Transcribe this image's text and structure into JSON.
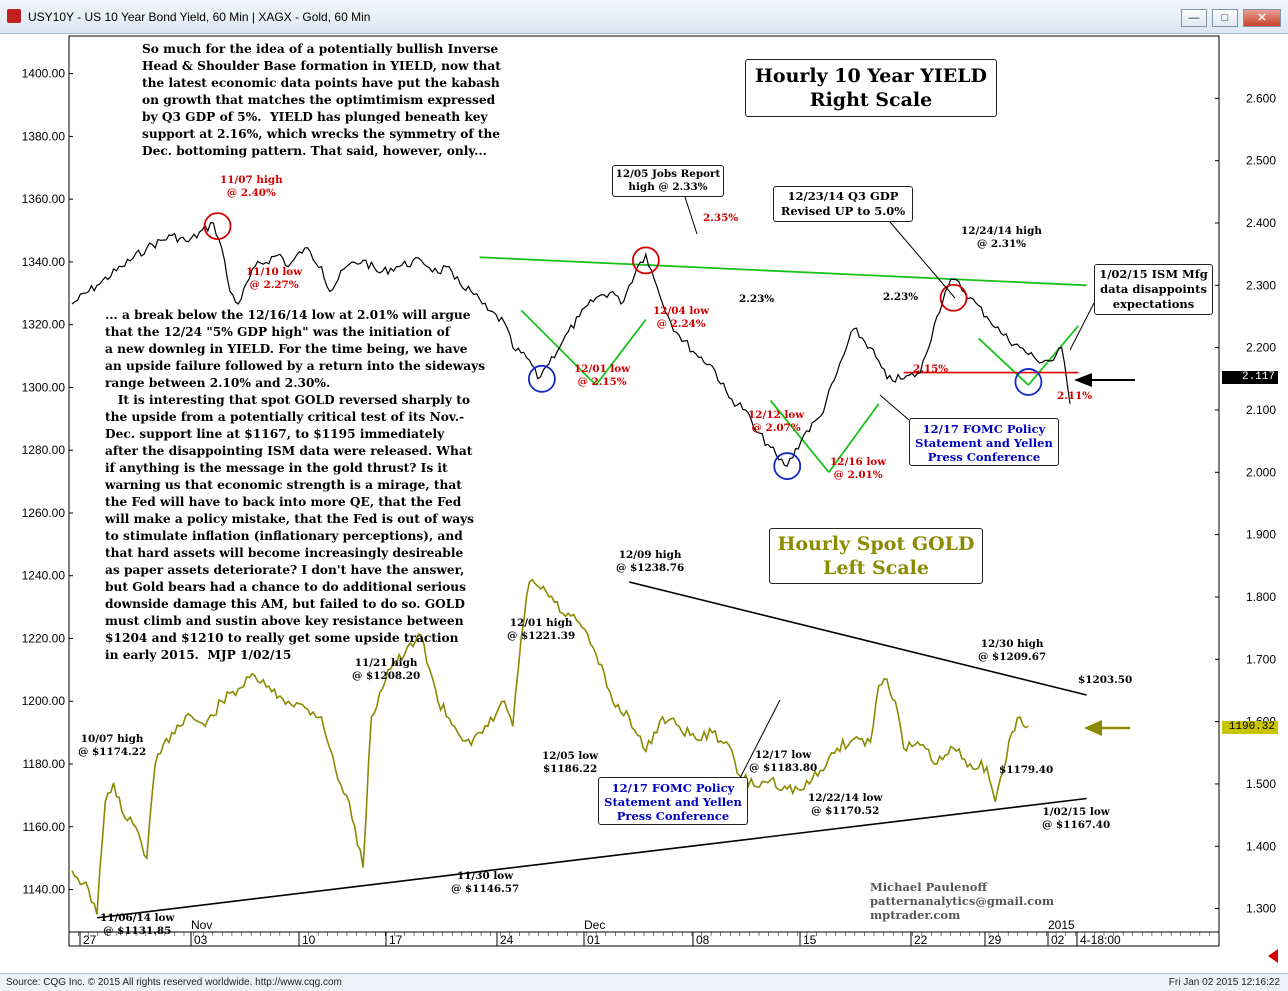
{
  "window": {
    "title": "USY10Y - US 10 Year Bond Yield, 60 Min   |   XAGX - Gold, 60 Min",
    "min_label": "—",
    "max_label": "□",
    "close_label": "✕"
  },
  "status": {
    "left": "Source: CQG Inc. © 2015 All rights reserved worldwide. http://www.cqg.com",
    "right": "Fri Jan 02 2015 12:16:22"
  },
  "notes": {
    "top": "So much for the idea of a potentially bullish Inverse\nHead & Shoulder Base formation in YIELD, now that\nthe latest economic data points have put the kabash\non growth that matches the optimtimism expressed\nby Q3 GDP of 5%.  YIELD has plunged beneath key\nsupport at 2.16%, which wrecks the symmetry of the\nDec. bottoming pattern. That said, however, only...",
    "middle": "... a break below the 12/16/14 low at 2.01% will argue\nthat the 12/24 \"5% GDP high\" was the initiation of\na new downleg in YIELD. For the time being, we have\nan upside failure followed by a return into the sideways\nrange between 2.10% and 2.30%.\n   It is interesting that spot GOLD reversed sharply to\nthe upside from a potentially critical test of its Nov.-\nDec. support line at $1167, to $1195 immediately\nafter the disappointing ISM data were released. What\nif anything is the message in the gold thrust? Is it\nwarning us that economic strength is a mirage, that\nthe Fed will have to back into more QE, that the Fed\nwill make a policy mistake, that the Fed is out of ways\nto stimulate inflation (inflationary perceptions), and\nthat hard assets will become increasingly desireable\nas paper assets deteriorate? I don't have the answer,\nbut Gold bears had a chance to do additional serious\ndownside damage this AM, but failed to do so. GOLD\nmust climb and sustin above key resistance between\n$1204 and $1210 to really get some upside traction\nin early 2015.  MJP 1/02/15"
  },
  "labels": {
    "yield_title": "Hourly 10 Year YIELD\nRight Scale",
    "gold_title": "Hourly Spot GOLD\nLeft Scale",
    "jobs_report": "12/05 Jobs Report\nhigh @ 2.33%",
    "q3_gdp": "12/23/14 Q3 GDP\nRevised UP to 5.0%",
    "ism": "1/02/15 ISM Mfg\ndata disappoints\nexpectations",
    "fomc_yield": "12/17 FOMC Policy\nStatement and Yellen\nPress Conference",
    "fomc_gold": "12/17 FOMC Policy\nStatement and Yellen\nPress Conference",
    "signature": "Michael Paulenoff\npatternanalytics@gmail.com\nmptrader.com"
  },
  "yield_annotations": [
    {
      "text": "11/07 high\n@ 2.40%",
      "color": "red"
    },
    {
      "text": "11/10 low\n@ 2.27%",
      "color": "red"
    },
    {
      "text": "2.35%",
      "color": "red"
    },
    {
      "text": "12/04 low\n@ 2.24%",
      "color": "red"
    },
    {
      "text": "12/01 low\n@ 2.15%",
      "color": "red"
    },
    {
      "text": "2.23%",
      "color": "black"
    },
    {
      "text": "12/12 low\n@ 2.07%",
      "color": "red"
    },
    {
      "text": "12/16 low\n@ 2.01%",
      "color": "red"
    },
    {
      "text": "2.23%",
      "color": "black"
    },
    {
      "text": "2.15%",
      "color": "red"
    },
    {
      "text": "12/24/14 high\n@ 2.31%",
      "color": "black"
    },
    {
      "text": "2.11%",
      "color": "red"
    }
  ],
  "gold_annotations": [
    {
      "text": "10/07 high\n@ $1174.22"
    },
    {
      "text": "11/06/14 low\n@ $1131.85"
    },
    {
      "text": "11/21 high\n@ $1208.20"
    },
    {
      "text": "11/30 low\n@ $1146.57"
    },
    {
      "text": "12/01 high\n@ $1221.39"
    },
    {
      "text": "12/05 low\n$1186.22"
    },
    {
      "text": "12/09 high\n@ $1238.76"
    },
    {
      "text": "12/17 low\n@ $1183.80"
    },
    {
      "text": "12/22/14 low\n@ $1170.52"
    },
    {
      "text": "12/30 high\n@ $1209.67"
    },
    {
      "text": "$1179.40"
    },
    {
      "text": "1/02/15 low\n@ $1167.40"
    },
    {
      "text": "$1203.50"
    }
  ],
  "price_tags": {
    "yield_last": "2.117",
    "gold_last": "1190.32"
  },
  "colors": {
    "gold": "#8b8a00",
    "yield": "#000000",
    "trend_green": "#19c31b",
    "support_red": "#e00000",
    "circle_red": "#d40000",
    "circle_blue": "#1428c8",
    "fomc_text": "#0000c0"
  },
  "chart_data": {
    "type": "line",
    "x_ticks": [
      "27",
      "03",
      "10",
      "17",
      "24",
      "01",
      "08",
      "15",
      "22",
      "29",
      "02",
      "4-18:00"
    ],
    "month_labels": [
      "Nov",
      "Dec",
      "2015"
    ],
    "left_axis": {
      "label": "Gold",
      "ticks": [
        "1400.00",
        "1380.00",
        "1360.00",
        "1340.00",
        "1320.00",
        "1300.00",
        "1280.00",
        "1260.00",
        "1240.00",
        "1220.00",
        "1200.00",
        "1180.00",
        "1160.00",
        "1140.00"
      ],
      "range": [
        1122,
        1412
      ]
    },
    "right_axis": {
      "label": "Yield",
      "ticks": [
        "2.600",
        "2.500",
        "2.400",
        "2.300",
        "2.200",
        "2.100",
        "2.000",
        "1.900",
        "1.800",
        "1.700",
        "1.600",
        "1.500",
        "1.400",
        "1.300"
      ],
      "range": [
        1.24,
        2.7
      ]
    },
    "series": [
      {
        "axis": "right",
        "points": [
          [
            0,
            2.27
          ],
          [
            3,
            2.3
          ],
          [
            6,
            2.33
          ],
          [
            9,
            2.36
          ],
          [
            12,
            2.38
          ],
          [
            14,
            2.37
          ],
          [
            17,
            2.4
          ],
          [
            18,
            2.36
          ],
          [
            19,
            2.29
          ],
          [
            20,
            2.27
          ],
          [
            22,
            2.33
          ],
          [
            25,
            2.35
          ],
          [
            26,
            2.33
          ],
          [
            28,
            2.36
          ],
          [
            30,
            2.33
          ],
          [
            31,
            2.29
          ],
          [
            33,
            2.33
          ],
          [
            35,
            2.34
          ],
          [
            37,
            2.32
          ],
          [
            39,
            2.33
          ],
          [
            42,
            2.34
          ],
          [
            44,
            2.32
          ],
          [
            45,
            2.33
          ],
          [
            46,
            2.31
          ],
          [
            48,
            2.29
          ],
          [
            50,
            2.26
          ],
          [
            52,
            2.24
          ],
          [
            53,
            2.2
          ],
          [
            55,
            2.18
          ],
          [
            56,
            2.15
          ],
          [
            57,
            2.17
          ],
          [
            59,
            2.21
          ],
          [
            61,
            2.25
          ],
          [
            63,
            2.28
          ],
          [
            65,
            2.29
          ],
          [
            66,
            2.27
          ],
          [
            68,
            2.33
          ],
          [
            69,
            2.35
          ],
          [
            70,
            2.31
          ],
          [
            72,
            2.24
          ],
          [
            73,
            2.22
          ],
          [
            75,
            2.19
          ],
          [
            77,
            2.17
          ],
          [
            79,
            2.12
          ],
          [
            81,
            2.1
          ],
          [
            82,
            2.07
          ],
          [
            84,
            2.04
          ],
          [
            85,
            2.02
          ],
          [
            86,
            2.01
          ],
          [
            88,
            2.06
          ],
          [
            90,
            2.09
          ],
          [
            92,
            2.16
          ],
          [
            94,
            2.23
          ],
          [
            96,
            2.2
          ],
          [
            98,
            2.15
          ],
          [
            100,
            2.15
          ],
          [
            102,
            2.16
          ],
          [
            104,
            2.25
          ],
          [
            105,
            2.29
          ],
          [
            106,
            2.31
          ],
          [
            108,
            2.28
          ],
          [
            110,
            2.25
          ],
          [
            112,
            2.22
          ],
          [
            114,
            2.2
          ],
          [
            116,
            2.18
          ],
          [
            118,
            2.18
          ],
          [
            119,
            2.2
          ],
          [
            120,
            2.11
          ]
        ]
      },
      {
        "axis": "left",
        "points": [
          [
            0,
            1146
          ],
          [
            2,
            1140
          ],
          [
            3,
            1132
          ],
          [
            4,
            1168
          ],
          [
            5,
            1174
          ],
          [
            6,
            1165
          ],
          [
            8,
            1158
          ],
          [
            9,
            1150
          ],
          [
            10,
            1180
          ],
          [
            12,
            1190
          ],
          [
            14,
            1196
          ],
          [
            16,
            1192
          ],
          [
            18,
            1200
          ],
          [
            20,
            1204
          ],
          [
            22,
            1208
          ],
          [
            24,
            1203
          ],
          [
            26,
            1200
          ],
          [
            28,
            1198
          ],
          [
            30,
            1195
          ],
          [
            31,
            1185
          ],
          [
            32,
            1175
          ],
          [
            33,
            1170
          ],
          [
            34,
            1160
          ],
          [
            35,
            1147
          ],
          [
            36,
            1195
          ],
          [
            38,
            1210
          ],
          [
            40,
            1215
          ],
          [
            42,
            1221
          ],
          [
            44,
            1200
          ],
          [
            46,
            1192
          ],
          [
            48,
            1186
          ],
          [
            50,
            1192
          ],
          [
            52,
            1200
          ],
          [
            53,
            1192
          ],
          [
            54,
            1220
          ],
          [
            55,
            1238
          ],
          [
            57,
            1235
          ],
          [
            59,
            1228
          ],
          [
            61,
            1225
          ],
          [
            63,
            1215
          ],
          [
            65,
            1200
          ],
          [
            67,
            1195
          ],
          [
            69,
            1184
          ],
          [
            71,
            1195
          ],
          [
            73,
            1192
          ],
          [
            75,
            1188
          ],
          [
            77,
            1190
          ],
          [
            79,
            1186
          ],
          [
            80,
            1177
          ],
          [
            82,
            1173
          ],
          [
            84,
            1175
          ],
          [
            86,
            1172
          ],
          [
            88,
            1172
          ],
          [
            90,
            1178
          ],
          [
            92,
            1185
          ],
          [
            94,
            1188
          ],
          [
            96,
            1187
          ],
          [
            97,
            1205
          ],
          [
            98,
            1207
          ],
          [
            99,
            1200
          ],
          [
            100,
            1185
          ],
          [
            102,
            1186
          ],
          [
            104,
            1180
          ],
          [
            106,
            1185
          ],
          [
            108,
            1180
          ],
          [
            110,
            1179
          ],
          [
            111,
            1168
          ],
          [
            112,
            1178
          ],
          [
            113,
            1190
          ],
          [
            114,
            1195
          ],
          [
            115,
            1192
          ]
        ]
      }
    ],
    "bar_count": 120
  }
}
